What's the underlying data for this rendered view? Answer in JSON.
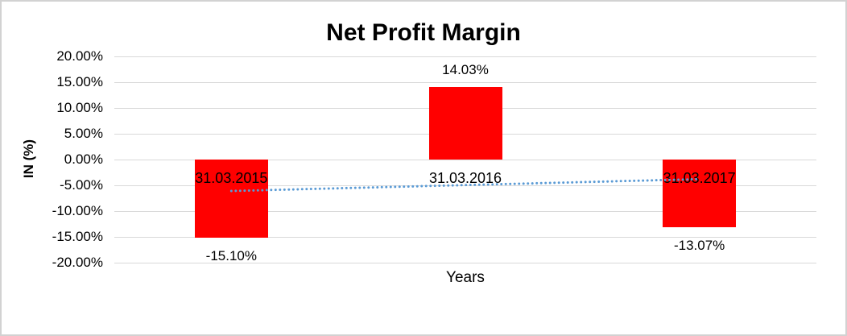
{
  "window": {
    "background": "#FFFFFF",
    "frame_border_color": "#D2D2D2"
  },
  "chart_data": {
    "type": "bar",
    "title": "Net Profit Margin",
    "xlabel": "Years",
    "ylabel": "IN (%)",
    "categories": [
      "31.03.2015",
      "31.03.2016",
      "31.03.2017"
    ],
    "values": [
      -15.1,
      14.03,
      -13.07
    ],
    "data_labels": [
      "-15.10%",
      "14.03%",
      "-13.07%"
    ],
    "ylim": [
      -20,
      20
    ],
    "ytick_step": 5,
    "ytick_labels": [
      "20.00%",
      "15.00%",
      "10.00%",
      "5.00%",
      "0.00%",
      "-5.00%",
      "-10.00%",
      "-15.00%",
      "-20.00%"
    ],
    "grid": true,
    "legend": false,
    "bar_color": "#FF0000",
    "gridline_color": "#D9D9D9",
    "label_color": "#000000",
    "trendline": {
      "type": "linear",
      "style": "dotted",
      "color": "#5B9BD5",
      "values": [
        -6.1,
        -4.95,
        -3.8
      ]
    }
  }
}
